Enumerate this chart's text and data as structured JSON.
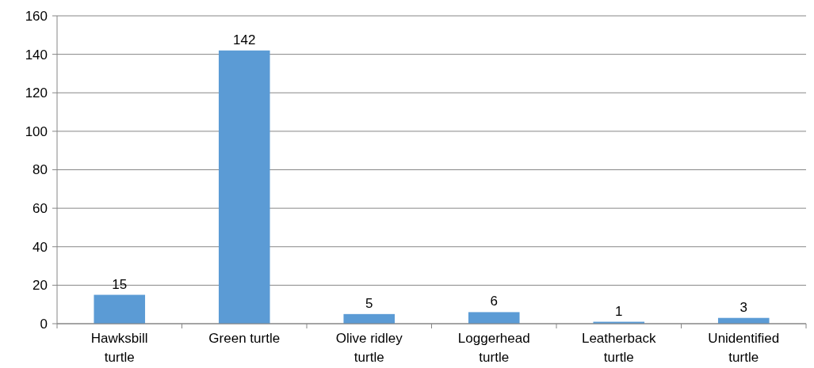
{
  "chart_data": {
    "type": "bar",
    "categories": [
      "Hawksbill turtle",
      "Green turtle",
      "Olive ridley turtle",
      "Loggerhead turtle",
      "Leatherback turtle",
      "Unidentified turtle"
    ],
    "values": [
      15,
      142,
      5,
      6,
      1,
      3
    ],
    "color": "#5b9bd5",
    "ylim": [
      0,
      160
    ],
    "yticks": [
      0,
      20,
      40,
      60,
      80,
      100,
      120,
      140,
      160
    ],
    "grid": "y",
    "data_labels": true
  }
}
